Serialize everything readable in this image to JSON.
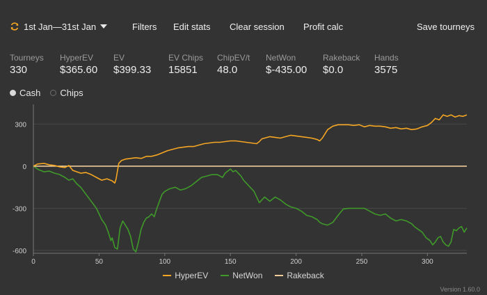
{
  "toolbar": {
    "date_range": "1st Jan—31st Jan",
    "date_icon": "refresh-cycle-icon",
    "dropdown_icon": "caret-down-icon",
    "filters": "Filters",
    "edit_stats": "Edit stats",
    "clear_session": "Clear session",
    "profit_calc": "Profit calc",
    "save_tourneys": "Save tourneys"
  },
  "stats": [
    {
      "label": "Tourneys",
      "value": "330"
    },
    {
      "label": "HyperEV",
      "value": "$365.60"
    },
    {
      "label": "EV",
      "value": "$399.33"
    },
    {
      "label": "EV Chips",
      "value": "15851"
    },
    {
      "label": "ChipEV/t",
      "value": "48.0"
    },
    {
      "label": "NetWon",
      "value": "$-435.00"
    },
    {
      "label": "Rakeback",
      "value": "$0.0"
    },
    {
      "label": "Hands",
      "value": "3575"
    }
  ],
  "mode": {
    "options": [
      "Cash",
      "Chips"
    ],
    "selected": "Cash"
  },
  "chart_data": {
    "type": "line",
    "xlim": [
      0,
      330
    ],
    "ylim": [
      -620,
      440
    ],
    "x_ticks": [
      0,
      50,
      100,
      150,
      200,
      250,
      300
    ],
    "y_ticks": [
      300,
      0,
      -300,
      -600
    ],
    "grid": "horizontal",
    "legend_position": "bottom",
    "series": [
      {
        "name": "HyperEV",
        "color": "#f5a623",
        "points": [
          [
            0,
            0
          ],
          [
            3,
            15
          ],
          [
            8,
            20
          ],
          [
            12,
            10
          ],
          [
            16,
            5
          ],
          [
            20,
            -5
          ],
          [
            24,
            -10
          ],
          [
            27,
            5
          ],
          [
            30,
            -30
          ],
          [
            33,
            -40
          ],
          [
            36,
            -50
          ],
          [
            40,
            -45
          ],
          [
            44,
            -60
          ],
          [
            48,
            -80
          ],
          [
            52,
            -100
          ],
          [
            56,
            -90
          ],
          [
            60,
            -105
          ],
          [
            62,
            -120
          ],
          [
            63,
            -90
          ],
          [
            65,
            20
          ],
          [
            67,
            40
          ],
          [
            70,
            50
          ],
          [
            74,
            55
          ],
          [
            78,
            60
          ],
          [
            82,
            55
          ],
          [
            86,
            70
          ],
          [
            90,
            70
          ],
          [
            94,
            80
          ],
          [
            98,
            95
          ],
          [
            102,
            110
          ],
          [
            106,
            120
          ],
          [
            110,
            130
          ],
          [
            114,
            135
          ],
          [
            118,
            140
          ],
          [
            122,
            140
          ],
          [
            126,
            150
          ],
          [
            130,
            160
          ],
          [
            134,
            165
          ],
          [
            138,
            170
          ],
          [
            142,
            170
          ],
          [
            146,
            175
          ],
          [
            150,
            180
          ],
          [
            154,
            180
          ],
          [
            158,
            175
          ],
          [
            162,
            170
          ],
          [
            166,
            165
          ],
          [
            170,
            160
          ],
          [
            172,
            175
          ],
          [
            174,
            195
          ],
          [
            176,
            200
          ],
          [
            180,
            210
          ],
          [
            184,
            205
          ],
          [
            188,
            200
          ],
          [
            192,
            210
          ],
          [
            196,
            220
          ],
          [
            200,
            215
          ],
          [
            204,
            210
          ],
          [
            208,
            205
          ],
          [
            212,
            200
          ],
          [
            216,
            190
          ],
          [
            218,
            180
          ],
          [
            220,
            200
          ],
          [
            222,
            230
          ],
          [
            224,
            260
          ],
          [
            228,
            285
          ],
          [
            232,
            295
          ],
          [
            236,
            295
          ],
          [
            240,
            295
          ],
          [
            244,
            290
          ],
          [
            248,
            295
          ],
          [
            252,
            280
          ],
          [
            256,
            290
          ],
          [
            260,
            285
          ],
          [
            264,
            285
          ],
          [
            268,
            280
          ],
          [
            272,
            270
          ],
          [
            276,
            275
          ],
          [
            280,
            265
          ],
          [
            284,
            270
          ],
          [
            288,
            260
          ],
          [
            292,
            265
          ],
          [
            296,
            280
          ],
          [
            300,
            290
          ],
          [
            303,
            310
          ],
          [
            306,
            340
          ],
          [
            309,
            330
          ],
          [
            312,
            365
          ],
          [
            315,
            355
          ],
          [
            318,
            365
          ],
          [
            321,
            350
          ],
          [
            324,
            360
          ],
          [
            327,
            355
          ],
          [
            330,
            365
          ]
        ]
      },
      {
        "name": "NetWon",
        "color": "#3f9a2a",
        "points": [
          [
            0,
            0
          ],
          [
            4,
            -25
          ],
          [
            8,
            -40
          ],
          [
            12,
            -35
          ],
          [
            16,
            -50
          ],
          [
            20,
            -60
          ],
          [
            24,
            -80
          ],
          [
            27,
            -100
          ],
          [
            30,
            -90
          ],
          [
            33,
            -125
          ],
          [
            36,
            -150
          ],
          [
            40,
            -200
          ],
          [
            44,
            -250
          ],
          [
            48,
            -300
          ],
          [
            52,
            -380
          ],
          [
            55,
            -420
          ],
          [
            57,
            -470
          ],
          [
            59,
            -530
          ],
          [
            60,
            -510
          ],
          [
            62,
            -580
          ],
          [
            64,
            -590
          ],
          [
            66,
            -440
          ],
          [
            68,
            -390
          ],
          [
            70,
            -420
          ],
          [
            72,
            -450
          ],
          [
            74,
            -500
          ],
          [
            76,
            -590
          ],
          [
            78,
            -610
          ],
          [
            80,
            -540
          ],
          [
            82,
            -450
          ],
          [
            84,
            -400
          ],
          [
            86,
            -370
          ],
          [
            88,
            -360
          ],
          [
            90,
            -340
          ],
          [
            92,
            -360
          ],
          [
            94,
            -300
          ],
          [
            96,
            -250
          ],
          [
            98,
            -200
          ],
          [
            100,
            -180
          ],
          [
            104,
            -160
          ],
          [
            108,
            -150
          ],
          [
            112,
            -170
          ],
          [
            116,
            -160
          ],
          [
            120,
            -140
          ],
          [
            124,
            -110
          ],
          [
            128,
            -80
          ],
          [
            132,
            -70
          ],
          [
            136,
            -60
          ],
          [
            140,
            -60
          ],
          [
            144,
            -80
          ],
          [
            146,
            -50
          ],
          [
            148,
            -35
          ],
          [
            150,
            -20
          ],
          [
            152,
            -40
          ],
          [
            154,
            -30
          ],
          [
            156,
            -50
          ],
          [
            158,
            -70
          ],
          [
            160,
            -100
          ],
          [
            164,
            -140
          ],
          [
            168,
            -180
          ],
          [
            170,
            -220
          ],
          [
            172,
            -260
          ],
          [
            174,
            -240
          ],
          [
            176,
            -220
          ],
          [
            180,
            -250
          ],
          [
            184,
            -220
          ],
          [
            188,
            -240
          ],
          [
            192,
            -270
          ],
          [
            196,
            -290
          ],
          [
            200,
            -300
          ],
          [
            204,
            -320
          ],
          [
            208,
            -350
          ],
          [
            212,
            -360
          ],
          [
            216,
            -380
          ],
          [
            218,
            -400
          ],
          [
            220,
            -410
          ],
          [
            224,
            -420
          ],
          [
            228,
            -400
          ],
          [
            232,
            -350
          ],
          [
            236,
            -305
          ],
          [
            240,
            -300
          ],
          [
            248,
            -300
          ],
          [
            252,
            -300
          ],
          [
            256,
            -320
          ],
          [
            260,
            -340
          ],
          [
            264,
            -350
          ],
          [
            268,
            -340
          ],
          [
            272,
            -370
          ],
          [
            276,
            -390
          ],
          [
            280,
            -380
          ],
          [
            284,
            -390
          ],
          [
            288,
            -410
          ],
          [
            290,
            -430
          ],
          [
            293,
            -450
          ],
          [
            296,
            -470
          ],
          [
            299,
            -510
          ],
          [
            302,
            -530
          ],
          [
            304,
            -560
          ],
          [
            306,
            -540
          ],
          [
            308,
            -510
          ],
          [
            310,
            -500
          ],
          [
            312,
            -540
          ],
          [
            314,
            -560
          ],
          [
            316,
            -570
          ],
          [
            318,
            -540
          ],
          [
            320,
            -450
          ],
          [
            322,
            -460
          ],
          [
            324,
            -440
          ],
          [
            326,
            -430
          ],
          [
            328,
            -470
          ],
          [
            330,
            -440
          ]
        ]
      },
      {
        "name": "Rakeback",
        "color": "#f0cc9a",
        "points": [
          [
            0,
            0
          ],
          [
            330,
            0
          ]
        ]
      }
    ]
  },
  "footer": {
    "version": "Version 1.60.0"
  }
}
